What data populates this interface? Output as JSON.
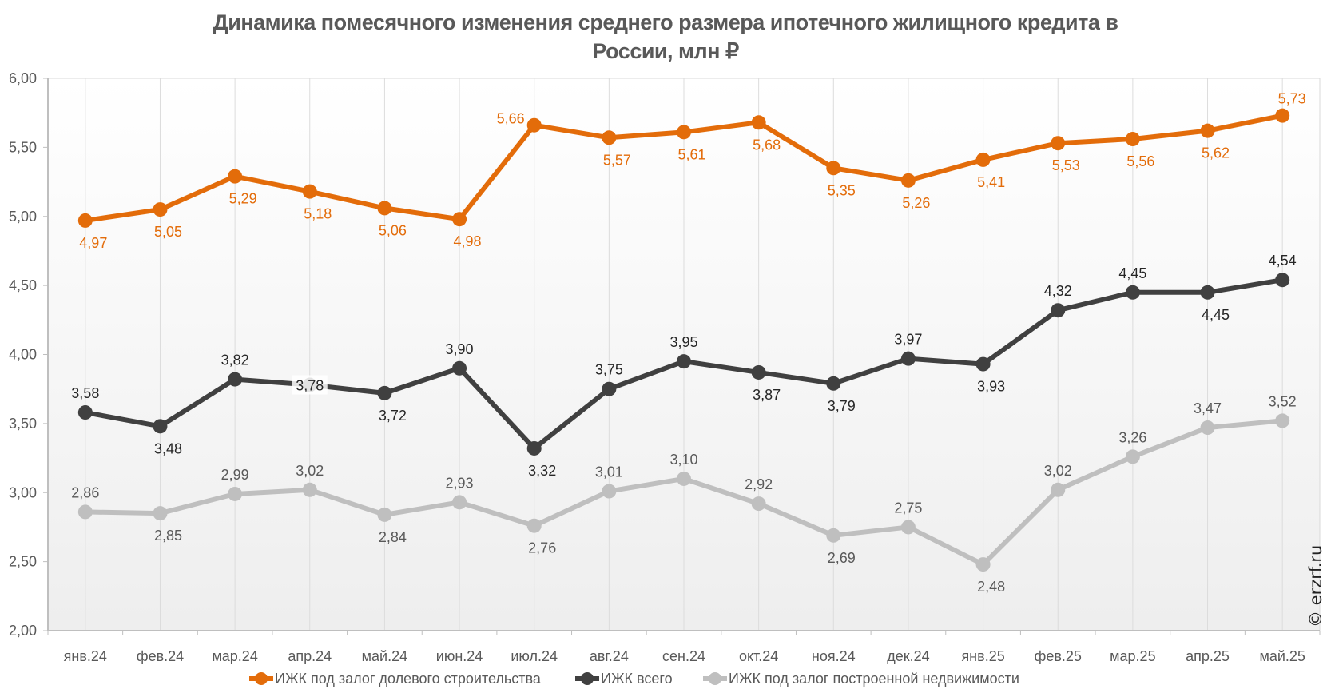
{
  "chart_data": {
    "type": "line",
    "title_lines": [
      "Динамика помесячного изменения среднего размера ипотечного жилищного кредита в",
      "России, млн ₽"
    ],
    "title": "Динамика помесячного изменения среднего размера ипотечного жилищного кредита в России, млн ₽",
    "xlabel": "",
    "ylabel": "",
    "ylim": [
      2.0,
      6.0
    ],
    "yticks": [
      2.0,
      2.5,
      3.0,
      3.5,
      4.0,
      4.5,
      5.0,
      5.5,
      6.0
    ],
    "ytick_labels": [
      "2,00",
      "2,50",
      "3,00",
      "3,50",
      "4,00",
      "4,50",
      "5,00",
      "5,50",
      "6,00"
    ],
    "grid": "vertical",
    "legend_position": "bottom",
    "categories": [
      "янв.24",
      "фев.24",
      "мар.24",
      "апр.24",
      "май.24",
      "июн.24",
      "июл.24",
      "авг.24",
      "сен.24",
      "окт.24",
      "ноя.24",
      "дек.24",
      "янв.25",
      "фев.25",
      "мар.25",
      "апр.25",
      "май.25"
    ],
    "series": [
      {
        "name": "ИЖК под залог долевого строительства",
        "color": "#E36C0A",
        "values": [
          4.97,
          5.05,
          5.29,
          5.18,
          5.06,
          4.98,
          5.66,
          5.57,
          5.61,
          5.68,
          5.35,
          5.26,
          5.41,
          5.53,
          5.56,
          5.62,
          5.73
        ],
        "labels": [
          "4,97",
          "5,05",
          "5,29",
          "5,18",
          "5,06",
          "4,98",
          "5,66",
          "5,57",
          "5,61",
          "5,68",
          "5,35",
          "5,26",
          "5,41",
          "5,53",
          "5,56",
          "5,62",
          "5,73"
        ],
        "label_pos": [
          "below",
          "below",
          "below",
          "below",
          "below",
          "below",
          "left",
          "below",
          "below",
          "below",
          "below",
          "below",
          "below",
          "below",
          "below",
          "below",
          "above-right"
        ]
      },
      {
        "name": "ИЖК всего",
        "color": "#404040",
        "values": [
          3.58,
          3.48,
          3.82,
          3.78,
          3.72,
          3.9,
          3.32,
          3.75,
          3.95,
          3.87,
          3.79,
          3.97,
          3.93,
          4.32,
          4.45,
          4.45,
          4.54
        ],
        "labels": [
          "3,58",
          "3,48",
          "3,82",
          "3,78",
          "3,72",
          "3,90",
          "3,32",
          "3,75",
          "3,95",
          "3,87",
          "3,79",
          "3,97",
          "3,93",
          "4,32",
          "4,45",
          "4,45",
          "4,54"
        ],
        "label_pos": [
          "above",
          "below",
          "above",
          "center",
          "below",
          "above",
          "below",
          "above",
          "above",
          "below",
          "below",
          "above",
          "below",
          "above",
          "above",
          "below",
          "above"
        ]
      },
      {
        "name": "ИЖК под залог построенной недвижимости",
        "color": "#BFBFBF",
        "values": [
          2.86,
          2.85,
          2.99,
          3.02,
          2.84,
          2.93,
          2.76,
          3.01,
          3.1,
          2.92,
          2.69,
          2.75,
          2.48,
          3.02,
          3.26,
          3.47,
          3.52
        ],
        "labels": [
          "2,86",
          "2,85",
          "2,99",
          "3,02",
          "2,84",
          "2,93",
          "2,76",
          "3,01",
          "3,10",
          "2,92",
          "2,69",
          "2,75",
          "2,48",
          "3,02",
          "3,26",
          "3,47",
          "3,52"
        ],
        "label_pos": [
          "above",
          "below",
          "above",
          "above",
          "below",
          "above",
          "below",
          "above",
          "above",
          "above",
          "below",
          "above",
          "below",
          "above",
          "above",
          "above",
          "above"
        ]
      }
    ],
    "watermark": "© erzrf.ru"
  }
}
